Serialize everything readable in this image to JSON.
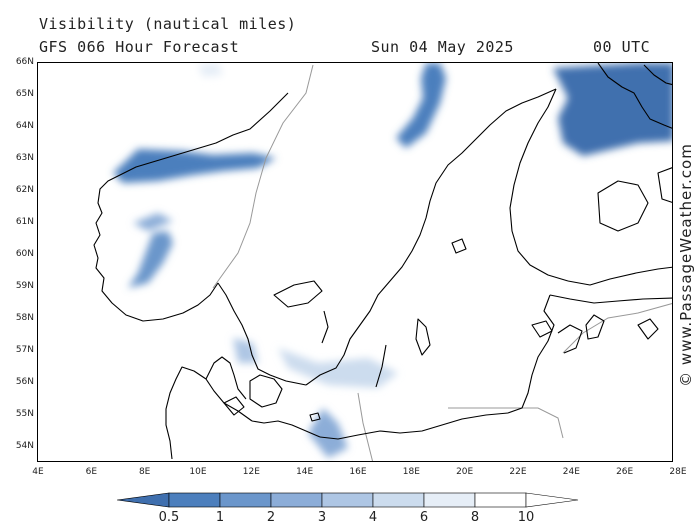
{
  "header": {
    "title": "Visibility (nautical miles)",
    "subtitle": "GFS 066 Hour Forecast",
    "date": "Sun 04 May 2025",
    "time": "00 UTC"
  },
  "watermark": "© www.PassageWeather.com",
  "axes": {
    "lat_labels": [
      "66N",
      "65N",
      "64N",
      "63N",
      "62N",
      "61N",
      "60N",
      "59N",
      "58N",
      "57N",
      "56N",
      "55N",
      "54N"
    ],
    "lon_labels": [
      "4E",
      "6E",
      "8E",
      "10E",
      "12E",
      "14E",
      "16E",
      "18E",
      "20E",
      "22E",
      "24E",
      "26E",
      "28E"
    ]
  },
  "legend": {
    "labels": [
      "0.5",
      "1",
      "2",
      "3",
      "4",
      "6",
      "8",
      "10"
    ],
    "colors": [
      "#3f6fae",
      "#4c7fbd",
      "#6b96cb",
      "#8cadd8",
      "#aec6e4",
      "#ccdcee",
      "#e6eef7",
      "#ffffff"
    ]
  },
  "colors": {
    "coast": "#000000",
    "border": "#999999"
  }
}
